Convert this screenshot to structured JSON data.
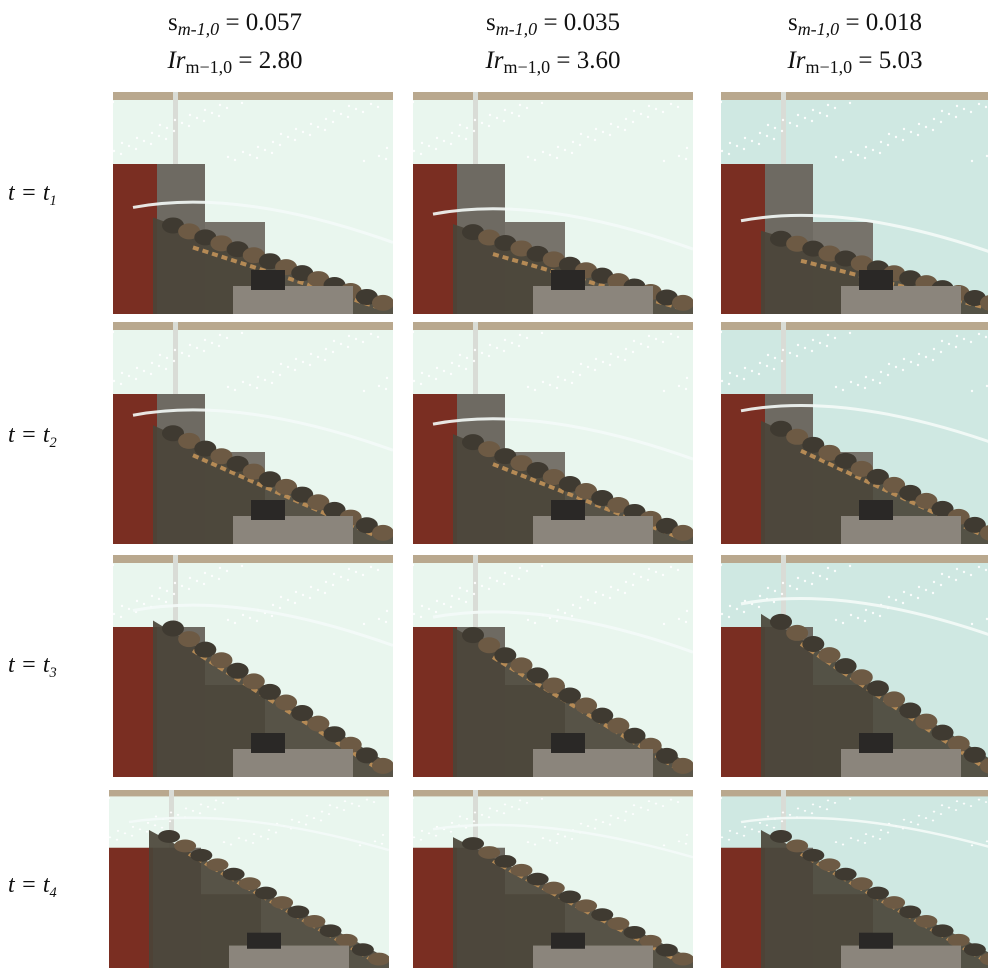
{
  "columns": [
    {
      "s_prefix": "s",
      "s_sub": "m-1,0",
      "s_value": "0.057",
      "ir_var": "Ir",
      "ir_sub": "m−1,0",
      "ir_value": "2.80"
    },
    {
      "s_prefix": "s",
      "s_sub": "m-1,0",
      "s_value": "0.035",
      "ir_var": "Ir",
      "ir_sub": "m−1,0",
      "ir_value": "3.60"
    },
    {
      "s_prefix": "s",
      "s_sub": "m-1,0",
      "s_value": "0.018",
      "ir_var": "Ir",
      "ir_sub": "m−1,0",
      "ir_value": "5.03"
    }
  ],
  "rows": [
    {
      "var": "t",
      "sym": "t",
      "index": "1"
    },
    {
      "var": "t",
      "sym": "t",
      "index": "2"
    },
    {
      "var": "t",
      "sym": "t",
      "index": "3"
    },
    {
      "var": "t",
      "sym": "t",
      "index": "4"
    }
  ],
  "colors": {
    "water_light": "#e9f6ee",
    "water_teal": "#cfe8e2",
    "foam": "#ffffff",
    "rock_dark": "#4a4438",
    "rock_brown": "#6d5a44",
    "block_red": "#7a2e22",
    "block_gray": "#6e6a62",
    "gravel": "#b58a55",
    "bench_gray": "#8b857c"
  }
}
